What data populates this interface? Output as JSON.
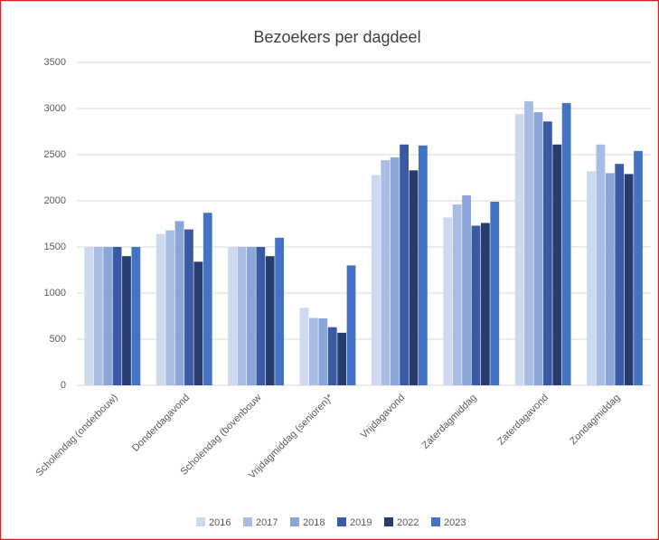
{
  "chart_data": {
    "type": "bar",
    "title": "Bezoekers per dagdeel",
    "categories": [
      "Scholendag (onderbouw)",
      "Donderdagavond",
      "Scholendag (bovenbouw",
      "Vrijdagmiddag (senioren)*",
      "Vrijdagavond",
      "Zaterdagmiddag",
      "Zaterdagavond",
      "Zondagmiddag"
    ],
    "series": [
      {
        "name": "2016",
        "color": "#cdd9ee",
        "values": [
          1500,
          1640,
          1500,
          840,
          2280,
          1820,
          2940,
          2320
        ]
      },
      {
        "name": "2017",
        "color": "#a9bde4",
        "values": [
          1500,
          1680,
          1500,
          730,
          2440,
          1960,
          3080,
          2610
        ]
      },
      {
        "name": "2018",
        "color": "#8aa5d8",
        "values": [
          1500,
          1780,
          1500,
          725,
          2470,
          2060,
          2960,
          2300
        ]
      },
      {
        "name": "2019",
        "color": "#3a5aa5",
        "values": [
          1500,
          1690,
          1500,
          630,
          2610,
          1730,
          2860,
          2400
        ]
      },
      {
        "name": "2022",
        "color": "#263d6e",
        "values": [
          1400,
          1340,
          1400,
          570,
          2330,
          1760,
          2610,
          2290
        ]
      },
      {
        "name": "2023",
        "color": "#4472c4",
        "values": [
          1500,
          1870,
          1600,
          1300,
          2600,
          1990,
          3060,
          2540
        ]
      }
    ],
    "ylim": [
      0,
      3500
    ],
    "yticks": [
      0,
      500,
      1000,
      1500,
      2000,
      2500,
      3000,
      3500
    ],
    "grid": true,
    "legend": "bottom"
  }
}
